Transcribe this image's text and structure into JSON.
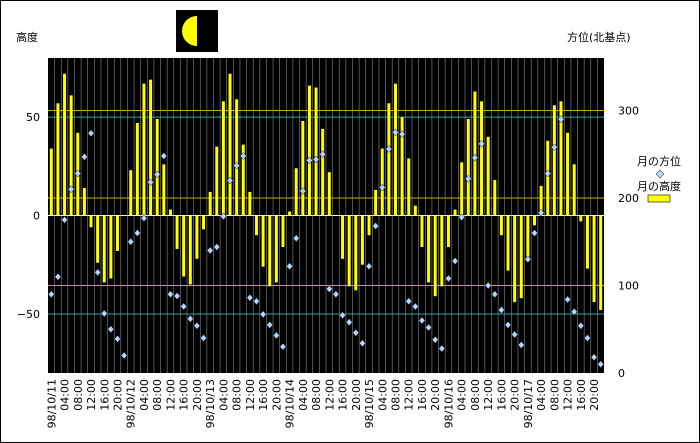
{
  "chart_data": {
    "type": "bar",
    "left_axis_title": "高度",
    "right_axis_title": "方位(北基点)",
    "moon_phase": "first-quarter",
    "left_ylim": [
      -80,
      80
    ],
    "right_ylim": [
      0,
      360
    ],
    "left_ticks": [
      -50,
      0,
      50
    ],
    "right_ticks": [
      0,
      100,
      200,
      300
    ],
    "x_tick_labels": [
      "98/10/11",
      "04:00",
      "08:00",
      "12:00",
      "16:00",
      "20:00",
      "98/10/12",
      "04:00",
      "08:00",
      "12:00",
      "16:00",
      "20:00",
      "98/10/13",
      "04:00",
      "08:00",
      "12:00",
      "16:00",
      "20:00",
      "98/10/14",
      "04:00",
      "08:00",
      "12:00",
      "16:00",
      "20:00",
      "98/10/15",
      "04:00",
      "08:00",
      "12:00",
      "16:00",
      "20:00",
      "98/10/16",
      "04:00",
      "08:00",
      "12:00",
      "16:00",
      "20:00",
      "98/10/17",
      "04:00",
      "08:00",
      "12:00",
      "16:00",
      "20:00"
    ],
    "hours_per_point": 1,
    "legend": [
      {
        "name": "月の方位",
        "marker": "diamond",
        "color": "#b7d4ff"
      },
      {
        "name": "月の高度",
        "marker": "bar",
        "color": "#ffff00"
      }
    ],
    "gridlines": {
      "major": "#2aa7a0",
      "minor": "#c8b400"
    },
    "altitude": [
      34,
      57,
      72,
      61,
      42,
      14,
      -6,
      -24,
      -34,
      -32,
      -18,
      0,
      23,
      47,
      67,
      69,
      49,
      26,
      3,
      -17,
      -31,
      -35,
      -22,
      -7,
      12,
      35,
      58,
      72,
      59,
      36,
      12,
      -10,
      -26,
      -36,
      -34,
      -16,
      2,
      24,
      48,
      66,
      65,
      44,
      22,
      0,
      -22,
      -36,
      -38,
      -25,
      -10,
      13,
      34,
      57,
      67,
      50,
      29,
      5,
      -16,
      -34,
      -41,
      -36,
      -16,
      3,
      27,
      49,
      63,
      58,
      40,
      18,
      -10,
      -28,
      -44,
      -42,
      -22,
      -5,
      15,
      38,
      56,
      58,
      42,
      26,
      -3,
      -27,
      -44,
      -48
    ],
    "azimuth": [
      90,
      110,
      175,
      210,
      228,
      247,
      274,
      115,
      68,
      50,
      39,
      20,
      150,
      160,
      177,
      218,
      227,
      248,
      90,
      88,
      76,
      62,
      54,
      40,
      140,
      144,
      179,
      220,
      237,
      248,
      86,
      82,
      67,
      55,
      43,
      30,
      122,
      154,
      208,
      243,
      244,
      250,
      96,
      90,
      66,
      58,
      46,
      34,
      122,
      168,
      212,
      256,
      275,
      273,
      82,
      76,
      60,
      52,
      38,
      28,
      108,
      128,
      178,
      222,
      246,
      262,
      100,
      90,
      72,
      55,
      44,
      32,
      130,
      160,
      183,
      228,
      258,
      290,
      84,
      70,
      54,
      40,
      18,
      10
    ]
  }
}
